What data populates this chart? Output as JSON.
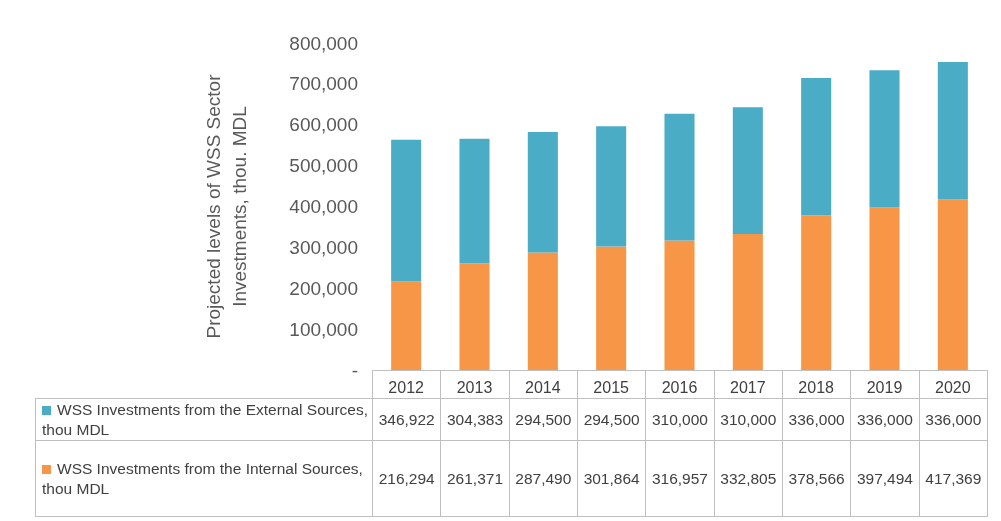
{
  "chart_data": {
    "type": "bar",
    "ylabel": "Projected levels of WSS Sector Investments, thou. MDL",
    "categories": [
      "2012",
      "2013",
      "2014",
      "2015",
      "2016",
      "2017",
      "2018",
      "2019",
      "2020"
    ],
    "stacked": true,
    "series": [
      {
        "name": "WSS Investments from the Internal Sources, thou MDL",
        "color": "#f79646",
        "values": [
          216294,
          261371,
          287490,
          301864,
          316957,
          332805,
          378566,
          397494,
          417369
        ],
        "value_labels": [
          "216,294",
          "261,371",
          "287,490",
          "301,864",
          "316,957",
          "332,805",
          "378,566",
          "397,494",
          "417,369"
        ]
      },
      {
        "name": "WSS Investments from the External Sources, thou MDL",
        "color": "#4bacc6",
        "values": [
          346922,
          304383,
          294500,
          294500,
          310000,
          310000,
          336000,
          336000,
          336000
        ],
        "value_labels": [
          "346,922",
          "304,383",
          "294,500",
          "294,500",
          "310,000",
          "310,000",
          "336,000",
          "336,000",
          "336,000"
        ]
      }
    ],
    "ylim": [
      0,
      800000
    ],
    "yticks": [
      {
        "value": 0,
        "label": "-"
      },
      {
        "value": 100000,
        "label": "100,000"
      },
      {
        "value": 200000,
        "label": "200,000"
      },
      {
        "value": 300000,
        "label": "300,000"
      },
      {
        "value": 400000,
        "label": "400,000"
      },
      {
        "value": 500000,
        "label": "500,000"
      },
      {
        "value": 600000,
        "label": "600,000"
      },
      {
        "value": 700000,
        "label": "700,000"
      },
      {
        "value": 800000,
        "label": "800,000"
      }
    ],
    "grid": false,
    "legend": "bottom"
  }
}
